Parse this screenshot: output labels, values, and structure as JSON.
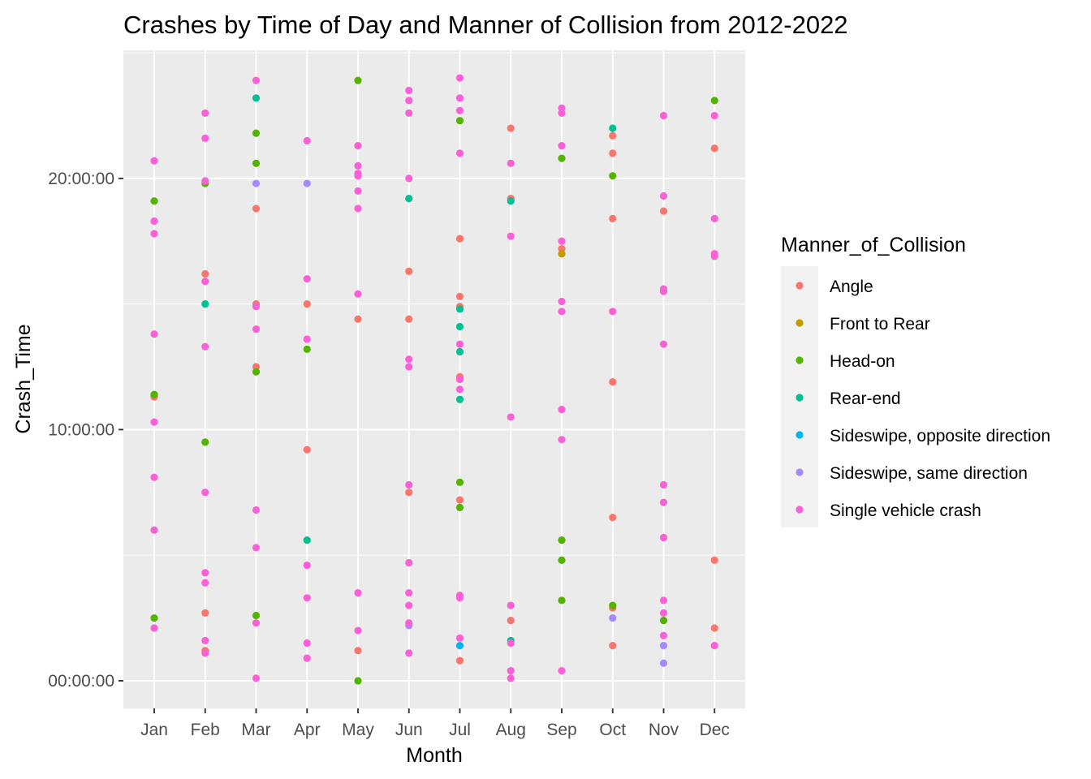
{
  "chart_data": {
    "type": "scatter",
    "title": "Crashes by Time of Day and Manner of Collision from 2012-2022",
    "xlabel": "Month",
    "ylabel": "Crash_Time",
    "categories": [
      "Jan",
      "Feb",
      "Mar",
      "Apr",
      "May",
      "Jun",
      "Jul",
      "Aug",
      "Sep",
      "Oct",
      "Nov",
      "Dec"
    ],
    "ylim": [
      -1.1,
      25.1
    ],
    "y_units": "hours",
    "y_ticks": [
      {
        "value": 0,
        "label": "00:00:00"
      },
      {
        "value": 10,
        "label": "10:00:00"
      },
      {
        "value": 20,
        "label": "20:00:00"
      }
    ],
    "grid": true,
    "legend_position": "right",
    "legend_title": "Manner_of_Collision",
    "series": [
      {
        "name": "Angle",
        "color": "#F8766D",
        "points": [
          {
            "x": "Jan",
            "y": 11.3
          },
          {
            "x": "Feb",
            "y": 16.2
          },
          {
            "x": "Feb",
            "y": 2.7
          },
          {
            "x": "Feb",
            "y": 1.2
          },
          {
            "x": "Mar",
            "y": 18.8
          },
          {
            "x": "Mar",
            "y": 15.0
          },
          {
            "x": "Mar",
            "y": 12.5
          },
          {
            "x": "Apr",
            "y": 15.0
          },
          {
            "x": "Apr",
            "y": 9.2
          },
          {
            "x": "May",
            "y": 14.4
          },
          {
            "x": "May",
            "y": 1.2
          },
          {
            "x": "Jun",
            "y": 16.3
          },
          {
            "x": "Jun",
            "y": 14.4
          },
          {
            "x": "Jun",
            "y": 7.5
          },
          {
            "x": "Jul",
            "y": 17.6
          },
          {
            "x": "Jul",
            "y": 15.3
          },
          {
            "x": "Jul",
            "y": 14.9
          },
          {
            "x": "Jul",
            "y": 12.1
          },
          {
            "x": "Jul",
            "y": 7.2
          },
          {
            "x": "Jul",
            "y": 0.8
          },
          {
            "x": "Aug",
            "y": 22.0
          },
          {
            "x": "Aug",
            "y": 19.2
          },
          {
            "x": "Aug",
            "y": 2.4
          },
          {
            "x": "Sep",
            "y": 17.2
          },
          {
            "x": "Oct",
            "y": 21.7
          },
          {
            "x": "Oct",
            "y": 21.0
          },
          {
            "x": "Oct",
            "y": 18.4
          },
          {
            "x": "Oct",
            "y": 11.9
          },
          {
            "x": "Oct",
            "y": 6.5
          },
          {
            "x": "Oct",
            "y": 2.9
          },
          {
            "x": "Oct",
            "y": 1.4
          },
          {
            "x": "Nov",
            "y": 18.7
          },
          {
            "x": "Dec",
            "y": 21.2
          },
          {
            "x": "Dec",
            "y": 4.8
          },
          {
            "x": "Dec",
            "y": 2.1
          }
        ]
      },
      {
        "name": "Front to Rear",
        "color": "#C49A00",
        "points": [
          {
            "x": "Sep",
            "y": 17.0
          }
        ]
      },
      {
        "name": "Head-on",
        "color": "#53B400",
        "points": [
          {
            "x": "Jan",
            "y": 19.1
          },
          {
            "x": "Jan",
            "y": 11.4
          },
          {
            "x": "Jan",
            "y": 2.5
          },
          {
            "x": "Feb",
            "y": 19.8
          },
          {
            "x": "Feb",
            "y": 9.5
          },
          {
            "x": "Mar",
            "y": 21.8
          },
          {
            "x": "Mar",
            "y": 20.6
          },
          {
            "x": "Mar",
            "y": 12.3
          },
          {
            "x": "Mar",
            "y": 2.6
          },
          {
            "x": "Apr",
            "y": 13.2
          },
          {
            "x": "May",
            "y": 23.9
          },
          {
            "x": "May",
            "y": 0.0
          },
          {
            "x": "Jul",
            "y": 22.3
          },
          {
            "x": "Jul",
            "y": 7.9
          },
          {
            "x": "Jul",
            "y": 6.9
          },
          {
            "x": "Sep",
            "y": 20.8
          },
          {
            "x": "Sep",
            "y": 5.6
          },
          {
            "x": "Sep",
            "y": 4.8
          },
          {
            "x": "Sep",
            "y": 3.2
          },
          {
            "x": "Oct",
            "y": 20.1
          },
          {
            "x": "Oct",
            "y": 3.0
          },
          {
            "x": "Nov",
            "y": 2.4
          },
          {
            "x": "Dec",
            "y": 23.1
          }
        ]
      },
      {
        "name": "Rear-end",
        "color": "#00C094",
        "points": [
          {
            "x": "Feb",
            "y": 15.0
          },
          {
            "x": "Mar",
            "y": 23.2
          },
          {
            "x": "Apr",
            "y": 5.6
          },
          {
            "x": "Jun",
            "y": 19.2
          },
          {
            "x": "Jul",
            "y": 14.8
          },
          {
            "x": "Jul",
            "y": 14.1
          },
          {
            "x": "Jul",
            "y": 13.1
          },
          {
            "x": "Jul",
            "y": 11.2
          },
          {
            "x": "Aug",
            "y": 19.1
          },
          {
            "x": "Aug",
            "y": 1.6
          },
          {
            "x": "Oct",
            "y": 22.0
          }
        ]
      },
      {
        "name": "Sideswipe, opposite direction",
        "color": "#00B6EB",
        "points": [
          {
            "x": "Jul",
            "y": 1.4
          }
        ]
      },
      {
        "name": "Sideswipe, same direction",
        "color": "#A58AFF",
        "points": [
          {
            "x": "Mar",
            "y": 19.8
          },
          {
            "x": "Apr",
            "y": 19.8
          },
          {
            "x": "Jun",
            "y": 2.2
          },
          {
            "x": "Oct",
            "y": 2.5
          },
          {
            "x": "Nov",
            "y": 1.4
          },
          {
            "x": "Nov",
            "y": 0.7
          }
        ]
      },
      {
        "name": "Single vehicle crash",
        "color": "#FB61D7",
        "points": [
          {
            "x": "Jan",
            "y": 20.7
          },
          {
            "x": "Jan",
            "y": 18.3
          },
          {
            "x": "Jan",
            "y": 17.8
          },
          {
            "x": "Jan",
            "y": 13.8
          },
          {
            "x": "Jan",
            "y": 10.3
          },
          {
            "x": "Jan",
            "y": 8.1
          },
          {
            "x": "Jan",
            "y": 6.0
          },
          {
            "x": "Jan",
            "y": 2.1
          },
          {
            "x": "Feb",
            "y": 22.6
          },
          {
            "x": "Feb",
            "y": 21.6
          },
          {
            "x": "Feb",
            "y": 19.9
          },
          {
            "x": "Feb",
            "y": 15.9
          },
          {
            "x": "Feb",
            "y": 13.3
          },
          {
            "x": "Feb",
            "y": 7.5
          },
          {
            "x": "Feb",
            "y": 4.3
          },
          {
            "x": "Feb",
            "y": 3.9
          },
          {
            "x": "Feb",
            "y": 1.6
          },
          {
            "x": "Feb",
            "y": 1.1
          },
          {
            "x": "Mar",
            "y": 23.9
          },
          {
            "x": "Mar",
            "y": 14.9
          },
          {
            "x": "Mar",
            "y": 14.0
          },
          {
            "x": "Mar",
            "y": 6.8
          },
          {
            "x": "Mar",
            "y": 5.3
          },
          {
            "x": "Mar",
            "y": 2.3
          },
          {
            "x": "Mar",
            "y": 0.1
          },
          {
            "x": "Apr",
            "y": 21.5
          },
          {
            "x": "Apr",
            "y": 16.0
          },
          {
            "x": "Apr",
            "y": 13.6
          },
          {
            "x": "Apr",
            "y": 4.6
          },
          {
            "x": "Apr",
            "y": 3.3
          },
          {
            "x": "Apr",
            "y": 1.5
          },
          {
            "x": "Apr",
            "y": 0.9
          },
          {
            "x": "May",
            "y": 21.3
          },
          {
            "x": "May",
            "y": 20.5
          },
          {
            "x": "May",
            "y": 20.2
          },
          {
            "x": "May",
            "y": 20.1
          },
          {
            "x": "May",
            "y": 19.5
          },
          {
            "x": "May",
            "y": 18.8
          },
          {
            "x": "May",
            "y": 15.4
          },
          {
            "x": "May",
            "y": 3.5
          },
          {
            "x": "May",
            "y": 2.0
          },
          {
            "x": "Jun",
            "y": 23.5
          },
          {
            "x": "Jun",
            "y": 23.1
          },
          {
            "x": "Jun",
            "y": 22.6
          },
          {
            "x": "Jun",
            "y": 20.0
          },
          {
            "x": "Jun",
            "y": 12.8
          },
          {
            "x": "Jun",
            "y": 12.5
          },
          {
            "x": "Jun",
            "y": 7.8
          },
          {
            "x": "Jun",
            "y": 4.7
          },
          {
            "x": "Jun",
            "y": 3.5
          },
          {
            "x": "Jun",
            "y": 3.0
          },
          {
            "x": "Jun",
            "y": 2.3
          },
          {
            "x": "Jun",
            "y": 1.1
          },
          {
            "x": "Jul",
            "y": 24.0
          },
          {
            "x": "Jul",
            "y": 23.2
          },
          {
            "x": "Jul",
            "y": 22.7
          },
          {
            "x": "Jul",
            "y": 21.0
          },
          {
            "x": "Jul",
            "y": 13.4
          },
          {
            "x": "Jul",
            "y": 12.0
          },
          {
            "x": "Jul",
            "y": 11.6
          },
          {
            "x": "Jul",
            "y": 3.4
          },
          {
            "x": "Jul",
            "y": 3.3
          },
          {
            "x": "Jul",
            "y": 1.7
          },
          {
            "x": "Aug",
            "y": 20.6
          },
          {
            "x": "Aug",
            "y": 17.7
          },
          {
            "x": "Aug",
            "y": 10.5
          },
          {
            "x": "Aug",
            "y": 3.0
          },
          {
            "x": "Aug",
            "y": 1.5
          },
          {
            "x": "Aug",
            "y": 0.4
          },
          {
            "x": "Aug",
            "y": 0.1
          },
          {
            "x": "Sep",
            "y": 22.8
          },
          {
            "x": "Sep",
            "y": 22.6
          },
          {
            "x": "Sep",
            "y": 21.3
          },
          {
            "x": "Sep",
            "y": 17.5
          },
          {
            "x": "Sep",
            "y": 15.1
          },
          {
            "x": "Sep",
            "y": 14.7
          },
          {
            "x": "Sep",
            "y": 10.8
          },
          {
            "x": "Sep",
            "y": 9.6
          },
          {
            "x": "Sep",
            "y": 0.4
          },
          {
            "x": "Oct",
            "y": 14.7
          },
          {
            "x": "Nov",
            "y": 22.5
          },
          {
            "x": "Nov",
            "y": 19.3
          },
          {
            "x": "Nov",
            "y": 15.6
          },
          {
            "x": "Nov",
            "y": 15.5
          },
          {
            "x": "Nov",
            "y": 13.4
          },
          {
            "x": "Nov",
            "y": 7.8
          },
          {
            "x": "Nov",
            "y": 7.1
          },
          {
            "x": "Nov",
            "y": 5.7
          },
          {
            "x": "Nov",
            "y": 3.2
          },
          {
            "x": "Nov",
            "y": 2.7
          },
          {
            "x": "Nov",
            "y": 1.8
          },
          {
            "x": "Dec",
            "y": 22.5
          },
          {
            "x": "Dec",
            "y": 18.4
          },
          {
            "x": "Dec",
            "y": 17.0
          },
          {
            "x": "Dec",
            "y": 16.9
          },
          {
            "x": "Dec",
            "y": 1.4
          }
        ]
      }
    ]
  }
}
